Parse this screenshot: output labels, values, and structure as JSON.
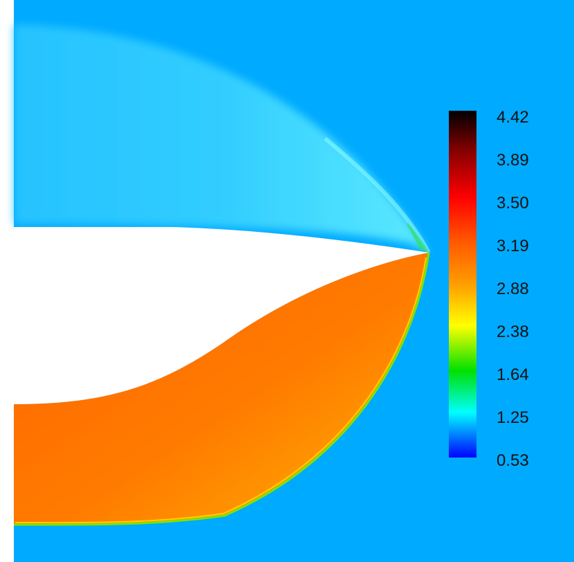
{
  "colorbar": {
    "labels": [
      "4.42",
      "3.89",
      "3.50",
      "3.19",
      "2.88",
      "2.38",
      "1.64",
      "1.25",
      "0.53"
    ],
    "stops": [
      "#000000",
      "#8a0000",
      "#ff0000",
      "#ff5a00",
      "#ff9d00",
      "#ffff00",
      "#00e000",
      "#00ffff",
      "#0000ff"
    ]
  },
  "colors": {
    "freestream": "#00aaff",
    "body": "#ffffff",
    "post_shock_upper": "#44d8ff",
    "post_shock_lower": "#ff6a00",
    "post_shock_lower_far": "#ffab00"
  }
}
